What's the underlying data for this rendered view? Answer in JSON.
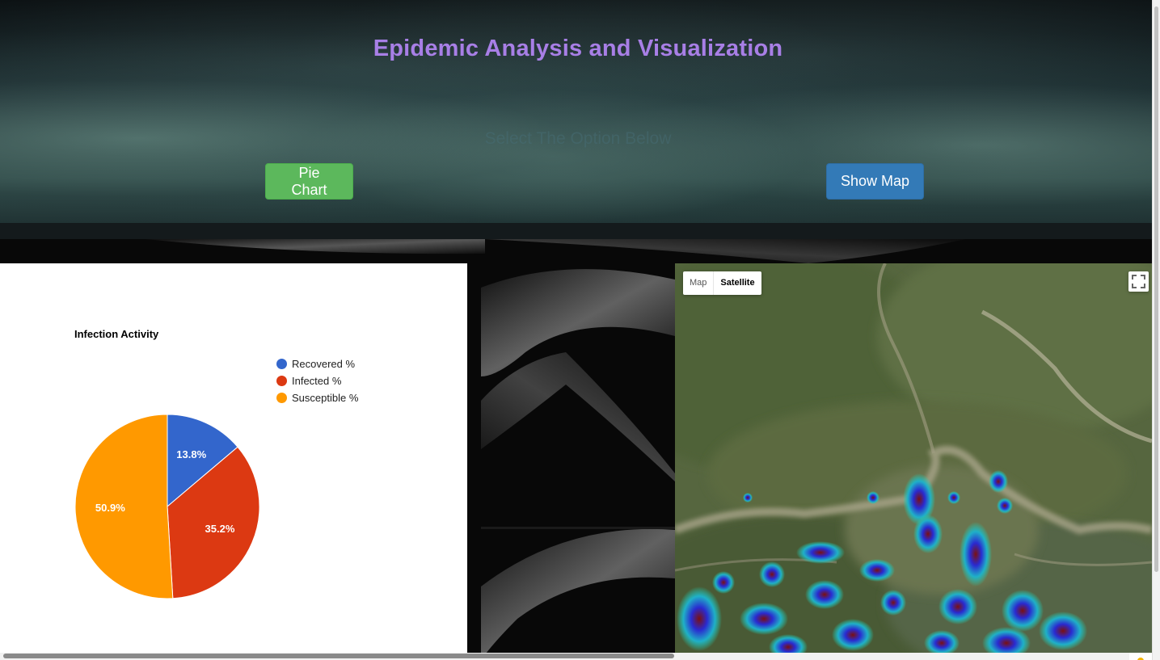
{
  "header": {
    "title": "Epidemic Analysis and Visualization",
    "subtitle": "Select The Option Below"
  },
  "buttons": {
    "pie_chart": "Pie Chart",
    "show_map": "Show Map"
  },
  "chart_data": {
    "type": "pie",
    "title": "Infection Activity",
    "slices": [
      {
        "label": "Recovered %",
        "value": 13.8,
        "display": "13.8%",
        "color": "#3366cc"
      },
      {
        "label": "Infected %",
        "value": 35.2,
        "display": "35.2%",
        "color": "#dc3912"
      },
      {
        "label": "Susceptible %",
        "value": 50.9,
        "display": "50.9%",
        "color": "#ff9900"
      }
    ],
    "legend_position": "right"
  },
  "map": {
    "type_options": [
      "Map",
      "Satellite"
    ],
    "selected_type": "Satellite",
    "overlay": "heatmap",
    "icons": {
      "fullscreen": "fullscreen-icon",
      "pegman": "pegman-icon"
    }
  },
  "colors": {
    "title": "#a87fe6",
    "pie_button": "#5cb85c",
    "map_button": "#337ab7"
  }
}
